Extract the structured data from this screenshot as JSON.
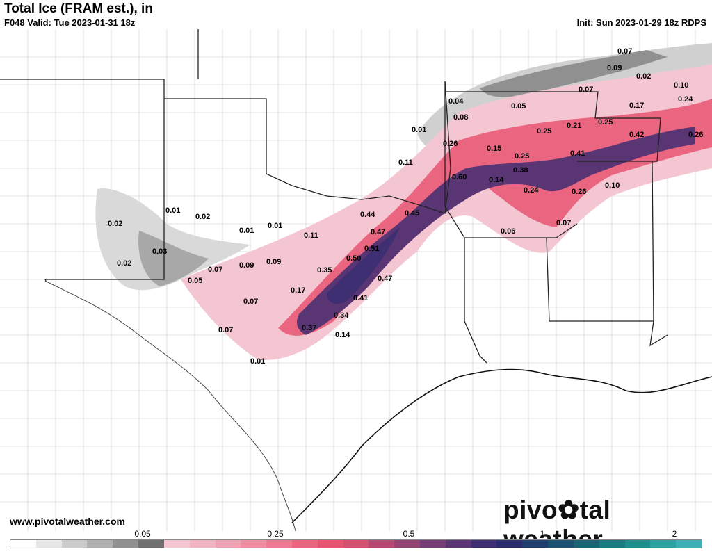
{
  "header": {
    "title": "Total Ice (FRAM est.), in",
    "valid": "F048 Valid: Tue 2023-01-31 18z",
    "init": "Init: Sun 2023-01-29 18z RDPS"
  },
  "footer": {
    "website": "www.pivotalweather.com",
    "brand_left": "pivo",
    "brand_right": "tal weather"
  },
  "colorbar": {
    "colors": [
      "#ffffff",
      "#e6e6e6",
      "#cccccc",
      "#b0b0b0",
      "#909090",
      "#6f6f6f",
      "#f4c6d2",
      "#f2b3c3",
      "#f0a2b4",
      "#ee8ea3",
      "#ec7a92",
      "#ea6580",
      "#e8536f",
      "#d4506f",
      "#b44a72",
      "#944373",
      "#763c75",
      "#5a3574",
      "#3e2e72",
      "#2a2a6e",
      "#1f3d6e",
      "#1a5070",
      "#186574",
      "#1a7a80",
      "#208d8d",
      "#2ea0a0",
      "#40b0b6"
    ],
    "ticks": [
      "0.05",
      "0.25",
      "0.5",
      "1",
      "2"
    ]
  },
  "map_labels": [
    "0.07",
    "0.09",
    "0.02",
    "0.10",
    "0.24",
    "0.07",
    "0.17",
    "0.25",
    "0.42",
    "0.26",
    "0.04",
    "0.05",
    "0.08",
    "0.21",
    "0.25",
    "0.01",
    "0.26",
    "0.15",
    "0.25",
    "0.41",
    "0.11",
    "0.38",
    "0.60",
    "0.14",
    "0.24",
    "0.26",
    "0.10",
    "0.01",
    "0.02",
    "0.01",
    "0.01",
    "0.44",
    "0.45",
    "0.06",
    "0.07",
    "0.02",
    "0.11",
    "0.47",
    "0.03",
    "0.51",
    "0.02",
    "0.07",
    "0.09",
    "0.09",
    "0.35",
    "0.50",
    "0.05",
    "0.47",
    "0.17",
    "0.07",
    "0.41",
    "0.34",
    "0.37",
    "0.14",
    "0.07",
    "0.01"
  ]
}
